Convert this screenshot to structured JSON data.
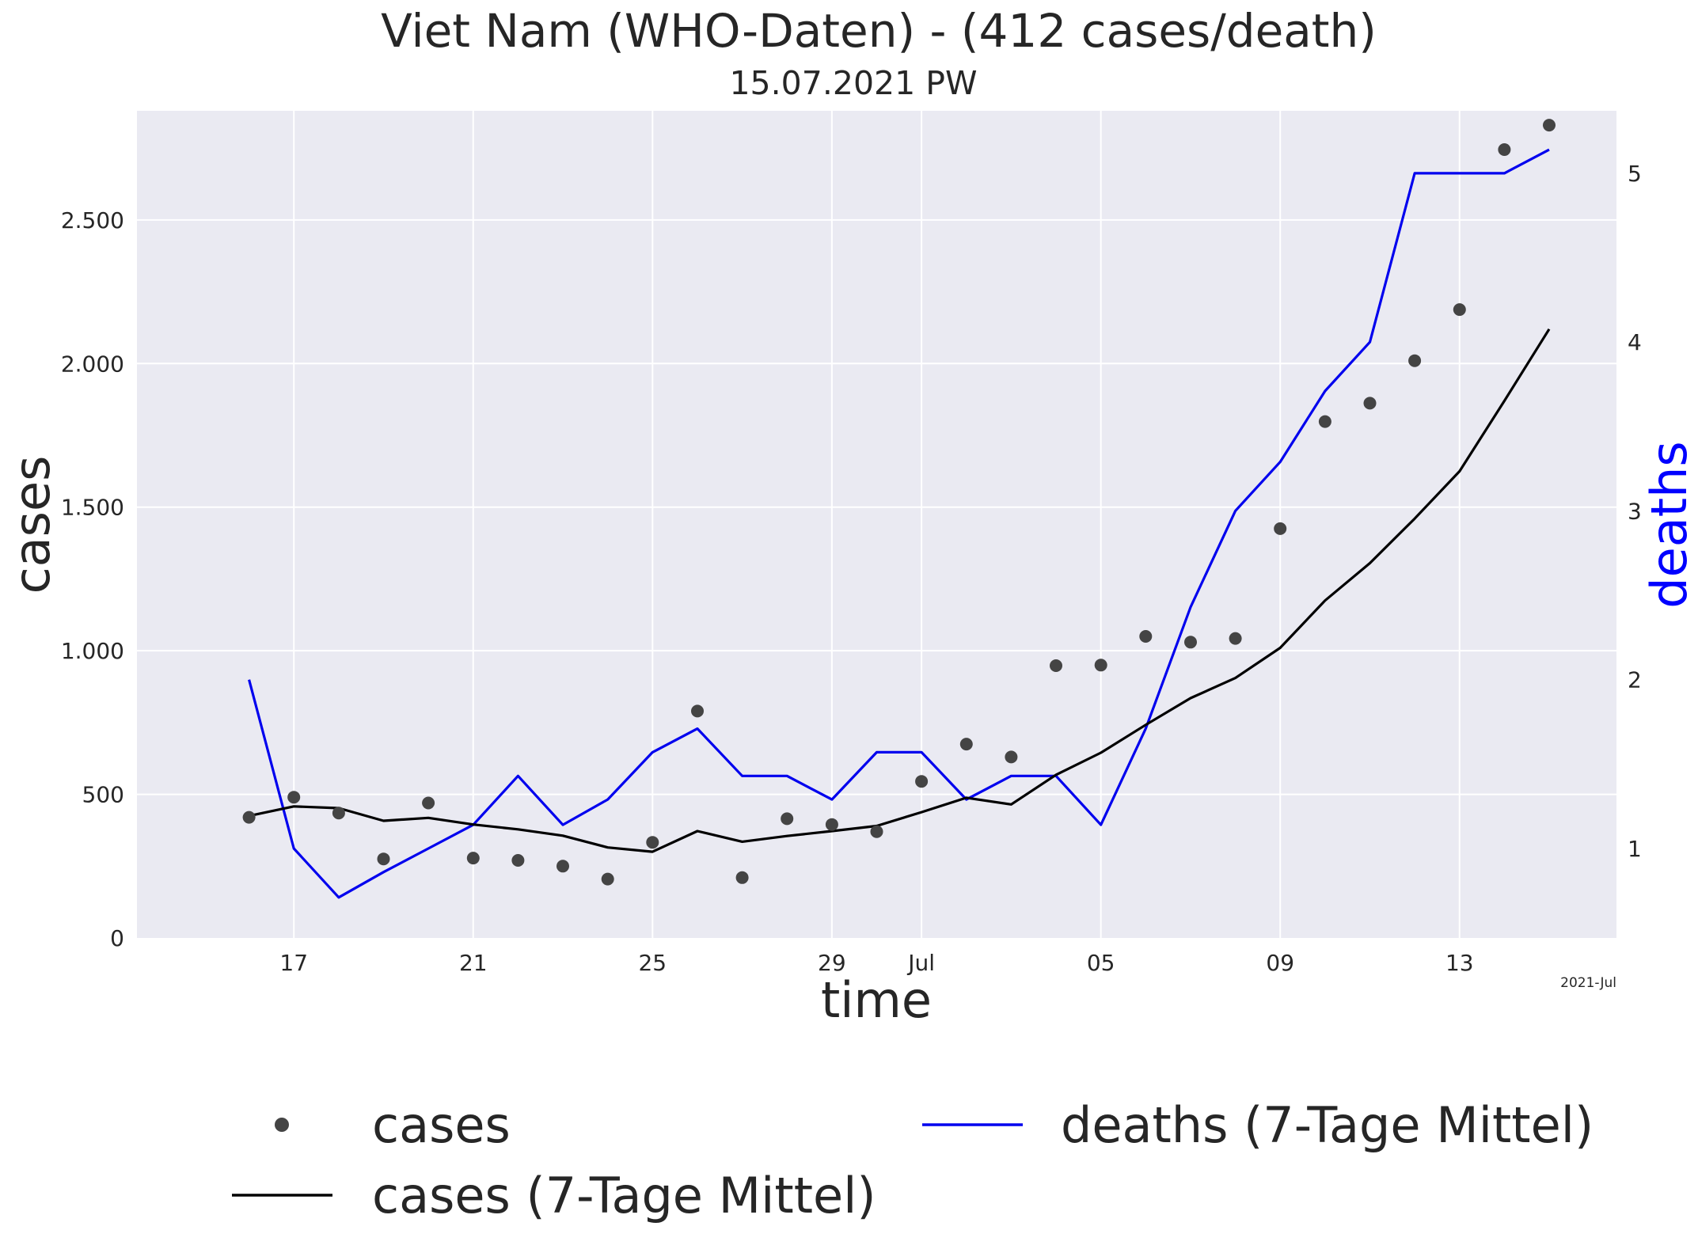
{
  "chart_data": {
    "type": "line",
    "title": "Viet Nam (WHO-Daten) - (412 cases/death)",
    "subtitle": "15.07.2021 PW",
    "xlabel": "time",
    "ylabel": "cases",
    "y2label": "deaths",
    "x_offset_label": "2021-Jul",
    "x": [
      "2021-06-16",
      "2021-06-17",
      "2021-06-18",
      "2021-06-19",
      "2021-06-20",
      "2021-06-21",
      "2021-06-22",
      "2021-06-23",
      "2021-06-24",
      "2021-06-25",
      "2021-06-26",
      "2021-06-27",
      "2021-06-28",
      "2021-06-29",
      "2021-06-30",
      "2021-07-01",
      "2021-07-02",
      "2021-07-03",
      "2021-07-04",
      "2021-07-05",
      "2021-07-06",
      "2021-07-07",
      "2021-07-08",
      "2021-07-09",
      "2021-07-10",
      "2021-07-11",
      "2021-07-12",
      "2021-07-13",
      "2021-07-14",
      "2021-07-15"
    ],
    "x_ticks": [
      {
        "date": "2021-06-17",
        "label": "17"
      },
      {
        "date": "2021-06-21",
        "label": "21"
      },
      {
        "date": "2021-06-25",
        "label": "25"
      },
      {
        "date": "2021-06-29",
        "label": "29"
      },
      {
        "date": "2021-07-01",
        "label": "Jul"
      },
      {
        "date": "2021-07-05",
        "label": "05"
      },
      {
        "date": "2021-07-09",
        "label": "09"
      },
      {
        "date": "2021-07-13",
        "label": "13"
      }
    ],
    "xlim": [
      "2021-06-13T12:00",
      "2021-07-16T12:00"
    ],
    "ylim": [
      0,
      2880
    ],
    "y_ticks": [
      {
        "value": 0,
        "label": "0"
      },
      {
        "value": 500,
        "label": "500"
      },
      {
        "value": 1000,
        "label": "1.000"
      },
      {
        "value": 1500,
        "label": "1.500"
      },
      {
        "value": 2000,
        "label": "2.000"
      },
      {
        "value": 2500,
        "label": "2.500"
      }
    ],
    "y2lim": [
      0.47,
      5.37
    ],
    "y2_ticks": [
      {
        "value": 1,
        "label": "1"
      },
      {
        "value": 2,
        "label": "2"
      },
      {
        "value": 3,
        "label": "3"
      },
      {
        "value": 4,
        "label": "4"
      },
      {
        "value": 5,
        "label": "5"
      }
    ],
    "grid": true,
    "legend_position": "bottom",
    "series": [
      {
        "name": "cases",
        "kind": "scatter",
        "axis": "left",
        "color": "#444444",
        "values": [
          420,
          490,
          435,
          275,
          470,
          278,
          270,
          250,
          205,
          333,
          790,
          210,
          415,
          395,
          370,
          545,
          675,
          630,
          948,
          950,
          1050,
          1030,
          1043,
          1425,
          1798,
          1862,
          2010,
          2188,
          2745,
          2830
        ]
      },
      {
        "name": "cases (7-Tage Mittel)",
        "kind": "line",
        "axis": "left",
        "color": "#000000",
        "values": [
          425,
          458,
          452,
          408,
          418,
          395,
          378,
          356,
          315,
          300,
          372,
          335,
          355,
          372,
          390,
          438,
          488,
          465,
          568,
          645,
          742,
          835,
          905,
          1010,
          1175,
          1305,
          1460,
          1625,
          1870,
          2120
        ]
      },
      {
        "name": "deaths (7-Tage Mittel)",
        "kind": "line",
        "axis": "right",
        "color": "#0000ee",
        "values": [
          2.0,
          1.0,
          0.71,
          0.86,
          1.0,
          1.14,
          1.43,
          1.14,
          1.29,
          1.57,
          1.71,
          1.43,
          1.43,
          1.29,
          1.57,
          1.57,
          1.29,
          1.43,
          1.43,
          1.14,
          1.71,
          2.43,
          3.0,
          3.29,
          3.71,
          4.0,
          5.0,
          5.0,
          5.0,
          5.14
        ]
      }
    ]
  }
}
